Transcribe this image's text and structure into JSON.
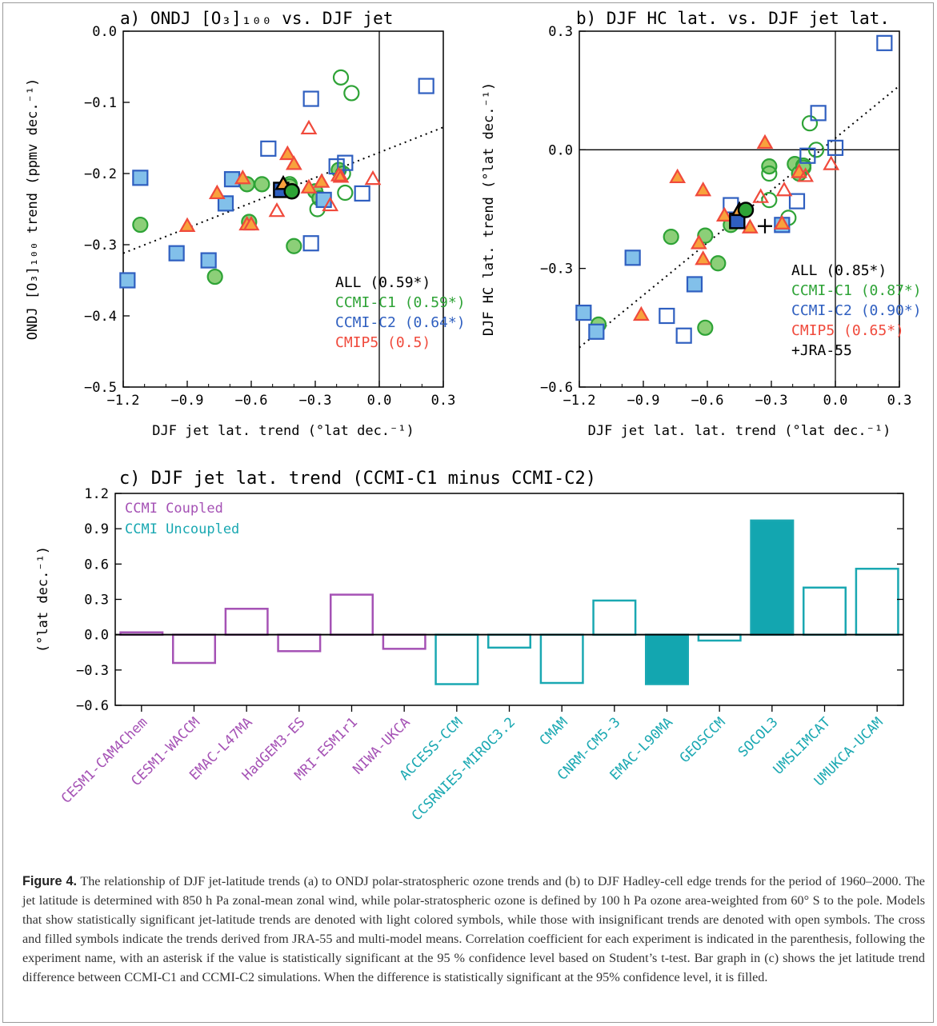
{
  "colors": {
    "ccmi_c1": "#2ea336",
    "ccmi_c1_fill": "#8ccf78",
    "ccmi_c2": "#2f5fc0",
    "ccmi_c2_fill": "#82c0ea",
    "cmip5": "#f04a3c",
    "cmip5_fill": "#f8a23c",
    "coupled": "#a552b5",
    "uncoupled": "#1aa8b2",
    "uncoupled_fill": "#13a6b0"
  },
  "chart_data": [
    {
      "type": "scatter",
      "panel_title": "a) ONDJ [O₃]₁₀₀ vs. DJF jet",
      "xlabel": "DJF jet lat. trend (°lat dec.⁻¹)",
      "ylabel": "ONDJ [O₃]₁₀₀ trend (ppmv dec.⁻¹)",
      "xlim": [
        -1.2,
        0.3
      ],
      "ylim": [
        -0.5,
        0.0
      ],
      "xticks": [
        "−1.2",
        "−0.9",
        "−0.6",
        "−0.3",
        "0.0",
        "0.3"
      ],
      "yticks": [
        "−0.5",
        "−0.4",
        "−0.3",
        "−0.2",
        "−0.1",
        "0.0"
      ],
      "legend": [
        {
          "text": "ALL (0.59*)",
          "color": "#000000"
        },
        {
          "text": "CCMI-C1 (0.59*)",
          "color": "#2ea336"
        },
        {
          "text": "CCMI-C2 (0.64*)",
          "color": "#2f5fc0"
        },
        {
          "text": "CMIP5 (0.5)",
          "color": "#f04a3c"
        }
      ],
      "fit_line": [
        [
          -1.2,
          -0.312
        ],
        [
          0.3,
          -0.135
        ]
      ],
      "series": [
        {
          "name": "CCMI-C1",
          "marker": "circle",
          "points": [
            {
              "x": -1.12,
              "y": -0.272,
              "f": 1
            },
            {
              "x": -0.77,
              "y": -0.345,
              "f": 1
            },
            {
              "x": -0.62,
              "y": -0.215,
              "f": 1
            },
            {
              "x": -0.61,
              "y": -0.268,
              "f": 1
            },
            {
              "x": -0.55,
              "y": -0.215,
              "f": 1
            },
            {
              "x": -0.42,
              "y": -0.218,
              "f": 1
            },
            {
              "x": -0.4,
              "y": -0.302,
              "f": 1
            },
            {
              "x": -0.3,
              "y": -0.225,
              "f": 1
            },
            {
              "x": -0.28,
              "y": -0.235,
              "f": 1
            },
            {
              "x": -0.19,
              "y": -0.195,
              "f": 1
            },
            {
              "x": -0.18,
              "y": -0.065,
              "f": 0
            },
            {
              "x": -0.13,
              "y": -0.087,
              "f": 0
            },
            {
              "x": -0.17,
              "y": -0.2,
              "f": 0
            },
            {
              "x": -0.16,
              "y": -0.227,
              "f": 0
            },
            {
              "x": -0.29,
              "y": -0.25,
              "f": 0
            },
            {
              "x": -0.42,
              "y": -0.215,
              "f": 0
            }
          ]
        },
        {
          "name": "CCMI-C2",
          "marker": "square",
          "points": [
            {
              "x": -1.18,
              "y": -0.35,
              "f": 1
            },
            {
              "x": -1.12,
              "y": -0.206,
              "f": 1
            },
            {
              "x": -0.95,
              "y": -0.312,
              "f": 1
            },
            {
              "x": -0.8,
              "y": -0.322,
              "f": 1
            },
            {
              "x": -0.72,
              "y": -0.242,
              "f": 1
            },
            {
              "x": -0.69,
              "y": -0.208,
              "f": 1
            },
            {
              "x": -0.26,
              "y": -0.237,
              "f": 1
            },
            {
              "x": -0.52,
              "y": -0.165,
              "f": 0
            },
            {
              "x": -0.32,
              "y": -0.095,
              "f": 0
            },
            {
              "x": -0.32,
              "y": -0.298,
              "f": 0
            },
            {
              "x": -0.2,
              "y": -0.19,
              "f": 0
            },
            {
              "x": -0.16,
              "y": -0.185,
              "f": 0
            },
            {
              "x": -0.08,
              "y": -0.228,
              "f": 0
            },
            {
              "x": 0.22,
              "y": -0.077,
              "f": 0
            }
          ]
        },
        {
          "name": "CMIP5",
          "marker": "triangle",
          "points": [
            {
              "x": -0.9,
              "y": -0.274,
              "f": 1
            },
            {
              "x": -0.76,
              "y": -0.228,
              "f": 1
            },
            {
              "x": -0.64,
              "y": -0.207,
              "f": 1
            },
            {
              "x": -0.62,
              "y": -0.272,
              "f": 1
            },
            {
              "x": -0.6,
              "y": -0.272,
              "f": 1
            },
            {
              "x": -0.43,
              "y": -0.173,
              "f": 1
            },
            {
              "x": -0.4,
              "y": -0.187,
              "f": 1
            },
            {
              "x": -0.33,
              "y": -0.22,
              "f": 1
            },
            {
              "x": -0.27,
              "y": -0.212,
              "f": 1
            },
            {
              "x": -0.19,
              "y": -0.203,
              "f": 1
            },
            {
              "x": -0.48,
              "y": -0.253,
              "f": 0
            },
            {
              "x": -0.33,
              "y": -0.137,
              "f": 0
            },
            {
              "x": -0.23,
              "y": -0.245,
              "f": 0
            },
            {
              "x": -0.18,
              "y": -0.205,
              "f": 0
            },
            {
              "x": -0.03,
              "y": -0.208,
              "f": 0
            }
          ]
        }
      ],
      "means": [
        {
          "marker": "square",
          "x": -0.46,
          "y": -0.223,
          "color": "#2f5fc0"
        },
        {
          "marker": "triangle",
          "x": -0.45,
          "y": -0.215,
          "color": "#f8a23c"
        },
        {
          "marker": "circle",
          "x": -0.41,
          "y": -0.225,
          "color": "#2ea336"
        }
      ]
    },
    {
      "type": "scatter",
      "panel_title": "b) DJF HC lat. vs. DJF jet lat.",
      "xlabel": "DJF jet lat. lat. trend (°lat dec.⁻¹)",
      "ylabel": "DJF HC lat. trend (°lat dec.⁻¹)",
      "xlim": [
        -1.2,
        0.3
      ],
      "ylim": [
        -0.6,
        0.3
      ],
      "xticks": [
        "−1.2",
        "−0.9",
        "−0.6",
        "−0.3",
        "0.0",
        "0.3"
      ],
      "yticks": [
        "−0.6",
        "−0.3",
        "0.0",
        "0.3"
      ],
      "legend": [
        {
          "text": "ALL (0.85*)",
          "color": "#000000"
        },
        {
          "text": "CCMI-C1 (0.87*)",
          "color": "#2ea336"
        },
        {
          "text": "CCMI-C2 (0.90*)",
          "color": "#2f5fc0"
        },
        {
          "text": "CMIP5 (0.65*)",
          "color": "#f04a3c"
        },
        {
          "text": "+JRA-55",
          "color": "#000000"
        }
      ],
      "fit_line": [
        [
          -1.2,
          -0.5
        ],
        [
          0.3,
          0.162
        ]
      ],
      "cross": {
        "x": -0.33,
        "y": -0.193
      },
      "series": [
        {
          "name": "CCMI-C1",
          "marker": "circle",
          "points": [
            {
              "x": -1.11,
              "y": -0.442,
              "f": 1
            },
            {
              "x": -0.77,
              "y": -0.22,
              "f": 1
            },
            {
              "x": -0.61,
              "y": -0.45,
              "f": 1
            },
            {
              "x": -0.61,
              "y": -0.217,
              "f": 1
            },
            {
              "x": -0.55,
              "y": -0.287,
              "f": 1
            },
            {
              "x": -0.31,
              "y": -0.042,
              "f": 1
            },
            {
              "x": -0.19,
              "y": -0.036,
              "f": 1
            },
            {
              "x": -0.17,
              "y": -0.06,
              "f": 1
            },
            {
              "x": -0.15,
              "y": -0.045,
              "f": 1
            },
            {
              "x": -0.49,
              "y": -0.19,
              "f": 1
            },
            {
              "x": -0.31,
              "y": -0.06,
              "f": 0
            },
            {
              "x": -0.12,
              "y": 0.067,
              "f": 0
            },
            {
              "x": -0.09,
              "y": 0.0,
              "f": 0
            },
            {
              "x": -0.31,
              "y": -0.127,
              "f": 0
            },
            {
              "x": -0.22,
              "y": -0.172,
              "f": 0
            },
            {
              "x": -0.15,
              "y": -0.04,
              "f": 0
            }
          ]
        },
        {
          "name": "CCMI-C2",
          "marker": "square",
          "points": [
            {
              "x": -1.18,
              "y": -0.412,
              "f": 1
            },
            {
              "x": -1.12,
              "y": -0.46,
              "f": 1
            },
            {
              "x": -0.95,
              "y": -0.273,
              "f": 1
            },
            {
              "x": -0.66,
              "y": -0.34,
              "f": 1
            },
            {
              "x": -0.25,
              "y": -0.19,
              "f": 1
            },
            {
              "x": -0.79,
              "y": -0.42,
              "f": 0
            },
            {
              "x": -0.71,
              "y": -0.47,
              "f": 0
            },
            {
              "x": -0.49,
              "y": -0.14,
              "f": 0
            },
            {
              "x": -0.18,
              "y": -0.13,
              "f": 0
            },
            {
              "x": -0.13,
              "y": -0.015,
              "f": 0
            },
            {
              "x": -0.08,
              "y": 0.093,
              "f": 0
            },
            {
              "x": 0.0,
              "y": 0.005,
              "f": 0
            },
            {
              "x": 0.23,
              "y": 0.27,
              "f": 0
            }
          ]
        },
        {
          "name": "CMIP5",
          "marker": "triangle",
          "points": [
            {
              "x": -0.91,
              "y": -0.418,
              "f": 1
            },
            {
              "x": -0.74,
              "y": -0.07,
              "f": 1
            },
            {
              "x": -0.62,
              "y": -0.277,
              "f": 1
            },
            {
              "x": -0.62,
              "y": -0.103,
              "f": 1
            },
            {
              "x": -0.64,
              "y": -0.237,
              "f": 1
            },
            {
              "x": -0.52,
              "y": -0.167,
              "f": 1
            },
            {
              "x": -0.4,
              "y": -0.197,
              "f": 1
            },
            {
              "x": -0.33,
              "y": 0.017,
              "f": 1
            },
            {
              "x": -0.25,
              "y": -0.187,
              "f": 1
            },
            {
              "x": -0.17,
              "y": -0.057,
              "f": 1
            },
            {
              "x": -0.35,
              "y": -0.12,
              "f": 0
            },
            {
              "x": -0.24,
              "y": -0.103,
              "f": 0
            },
            {
              "x": -0.14,
              "y": -0.067,
              "f": 0
            },
            {
              "x": -0.02,
              "y": -0.037,
              "f": 0
            }
          ]
        }
      ],
      "means": [
        {
          "marker": "square",
          "x": -0.46,
          "y": -0.18,
          "color": "#2f5fc0"
        },
        {
          "marker": "triangle",
          "x": -0.45,
          "y": -0.153,
          "color": "#f8a23c"
        },
        {
          "marker": "circle",
          "x": -0.42,
          "y": -0.152,
          "color": "#2ea336"
        }
      ]
    },
    {
      "type": "bar",
      "panel_title": "c) DJF jet lat. trend (CCMI-C1 minus CCMI-C2)",
      "ylabel": "(°lat dec.⁻¹)",
      "ylim": [
        -0.6,
        1.2
      ],
      "yticks": [
        "−0.6",
        "−0.3",
        "0.0",
        "0.3",
        "0.6",
        "0.9",
        "1.2"
      ],
      "legend": [
        {
          "text": "CCMI Coupled",
          "color": "#a552b5"
        },
        {
          "text": "CCMI Uncoupled",
          "color": "#1aa8b2"
        }
      ],
      "categories": [
        "CESM1-CAM4Chem",
        "CESM1-WACCM",
        "EMAC-L47MA",
        "HadGEM3-ES",
        "MRI-ESM1r1",
        "NIWA-UKCA",
        "ACCESS-CCM",
        "CCSRNIES-MIROC3.2",
        "CMAM",
        "CNRM-CM5-3",
        "EMAC-L90MA",
        "GEOSCCM",
        "SOCOL3",
        "UMSLIMCAT",
        "UMUKCA-UCAM"
      ],
      "groups": [
        "coupled",
        "coupled",
        "coupled",
        "coupled",
        "coupled",
        "coupled",
        "uncoupled",
        "uncoupled",
        "uncoupled",
        "uncoupled",
        "uncoupled",
        "uncoupled",
        "uncoupled",
        "uncoupled",
        "uncoupled"
      ],
      "values": [
        0.02,
        -0.24,
        0.22,
        -0.14,
        0.34,
        -0.12,
        -0.42,
        -0.11,
        -0.41,
        0.29,
        -0.42,
        -0.05,
        0.97,
        0.4,
        0.56
      ],
      "significant": [
        false,
        false,
        false,
        false,
        false,
        false,
        false,
        false,
        false,
        false,
        true,
        false,
        true,
        false,
        false
      ]
    }
  ],
  "caption": {
    "label": "Figure 4.",
    "text": "The relationship of DJF jet-latitude trends (a) to ONDJ polar-stratospheric ozone trends and (b) to DJF Hadley-cell edge trends for the period of 1960–2000. The jet latitude is determined with 850 h Pa zonal-mean zonal wind, while polar-stratospheric ozone is defined by 100 h Pa ozone area-weighted from 60° S to the pole. Models that show statistically significant jet-latitude trends are denoted with light colored symbols, while those with insignificant trends are denoted with open symbols. The cross and filled symbols indicate the trends derived from JRA-55 and multi-model means. Correlation coefficient for each experiment is indicated in the parenthesis, following the experiment name, with an asterisk if the value is statistically significant at the 95 % confidence level based on Student’s t-test. Bar graph in (c) shows the jet latitude trend difference between CCMI-C1 and CCMI-C2 simulations. When the difference is statistically significant at the 95% confidence level, it is filled."
  }
}
